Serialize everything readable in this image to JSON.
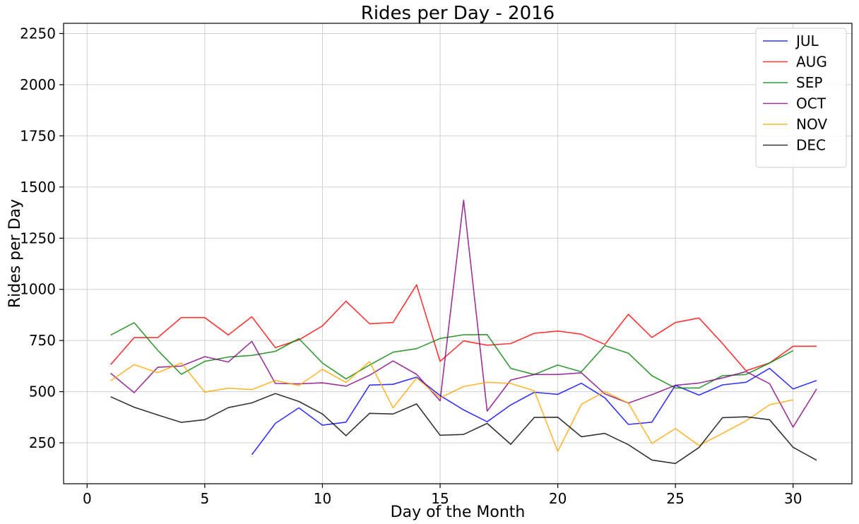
{
  "chart_data": {
    "type": "line",
    "title": "Rides per Day - 2016",
    "xlabel": "Day of the Month",
    "ylabel": "Rides per Day",
    "xlim": [
      -1,
      32.5
    ],
    "ylim": [
      50,
      2300
    ],
    "xticks": [
      0,
      5,
      10,
      15,
      20,
      25,
      30
    ],
    "yticks": [
      250,
      500,
      750,
      1000,
      1250,
      1500,
      1750,
      2000,
      2250
    ],
    "grid": true,
    "legend_position": "top-right",
    "x": [
      1,
      2,
      3,
      4,
      5,
      6,
      7,
      8,
      9,
      10,
      11,
      12,
      13,
      14,
      15,
      16,
      17,
      18,
      19,
      20,
      21,
      22,
      23,
      24,
      25,
      26,
      27,
      28,
      29,
      30,
      31
    ],
    "series": [
      {
        "name": "JUL",
        "color": "#0000ff",
        "values": [
          null,
          null,
          null,
          null,
          null,
          null,
          192,
          345,
          421,
          336,
          351,
          532,
          536,
          571,
          481,
          411,
          353,
          435,
          497,
          487,
          541,
          470,
          340,
          351,
          531,
          483,
          533,
          546,
          614,
          513,
          555
        ]
      },
      {
        "name": "AUG",
        "color": "#ff0000",
        "values": [
          632,
          764,
          764,
          862,
          862,
          777,
          866,
          715,
          753,
          821,
          942,
          832,
          838,
          1022,
          648,
          748,
          727,
          735,
          785,
          796,
          781,
          731,
          878,
          765,
          838,
          860,
          735,
          602,
          640,
          722,
          722
        ]
      },
      {
        "name": "SEP",
        "color": "#008000",
        "values": [
          776,
          837,
          702,
          585,
          648,
          669,
          677,
          697,
          759,
          640,
          562,
          630,
          693,
          710,
          760,
          778,
          779,
          614,
          584,
          630,
          597,
          725,
          688,
          578,
          518,
          518,
          578,
          584,
          640,
          700,
          null
        ]
      },
      {
        "name": "OCT",
        "color": "#800080",
        "values": [
          590,
          495,
          619,
          625,
          671,
          645,
          746,
          540,
          538,
          543,
          527,
          580,
          650,
          585,
          455,
          1436,
          405,
          557,
          584,
          584,
          592,
          489,
          444,
          485,
          531,
          542,
          567,
          598,
          539,
          327,
          513
        ]
      },
      {
        "name": "NOV",
        "color": "#ffa500",
        "values": [
          553,
          632,
          593,
          640,
          498,
          517,
          510,
          555,
          530,
          609,
          545,
          647,
          421,
          567,
          470,
          525,
          546,
          540,
          504,
          208,
          438,
          500,
          444,
          247,
          320,
          237,
          296,
          357,
          436,
          460,
          null
        ]
      },
      {
        "name": "DEC",
        "color": "#000000",
        "values": [
          475,
          424,
          386,
          350,
          363,
          422,
          445,
          491,
          452,
          391,
          285,
          394,
          391,
          440,
          287,
          291,
          345,
          243,
          374,
          375,
          280,
          296,
          241,
          166,
          149,
          227,
          373,
          377,
          363,
          228,
          165
        ]
      }
    ]
  }
}
